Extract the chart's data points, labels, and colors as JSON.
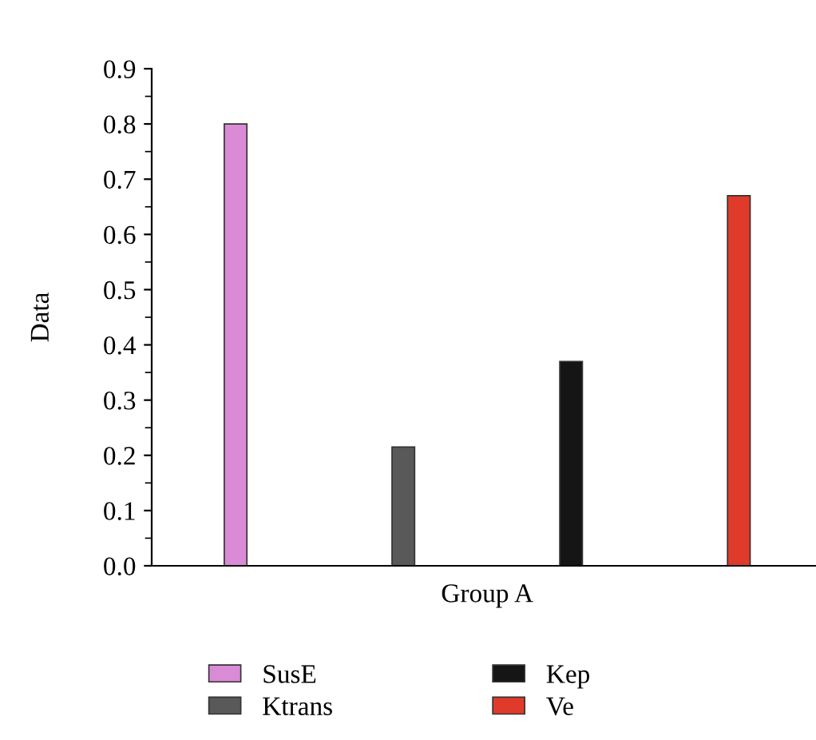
{
  "chart_data": {
    "type": "bar",
    "ylabel": "Data",
    "categories": [
      "Group A"
    ],
    "series": [
      {
        "name": "SusE",
        "color": "#d98bd6",
        "values": [
          0.8
        ]
      },
      {
        "name": "Ktrans",
        "color": "#595959",
        "values": [
          0.215
        ]
      },
      {
        "name": "Kep",
        "color": "#151515",
        "values": [
          0.37
        ]
      },
      {
        "name": "Ve",
        "color": "#e03a2a",
        "values": [
          0.67
        ]
      }
    ],
    "ylim": [
      0,
      0.9
    ],
    "yticks": [
      {
        "value": 0,
        "label": "0.0"
      },
      0.1,
      0.2,
      0.3,
      0.4,
      0.5,
      0.6,
      0.7,
      0.8,
      0.9
    ],
    "grid": false,
    "legend": "bottom"
  }
}
